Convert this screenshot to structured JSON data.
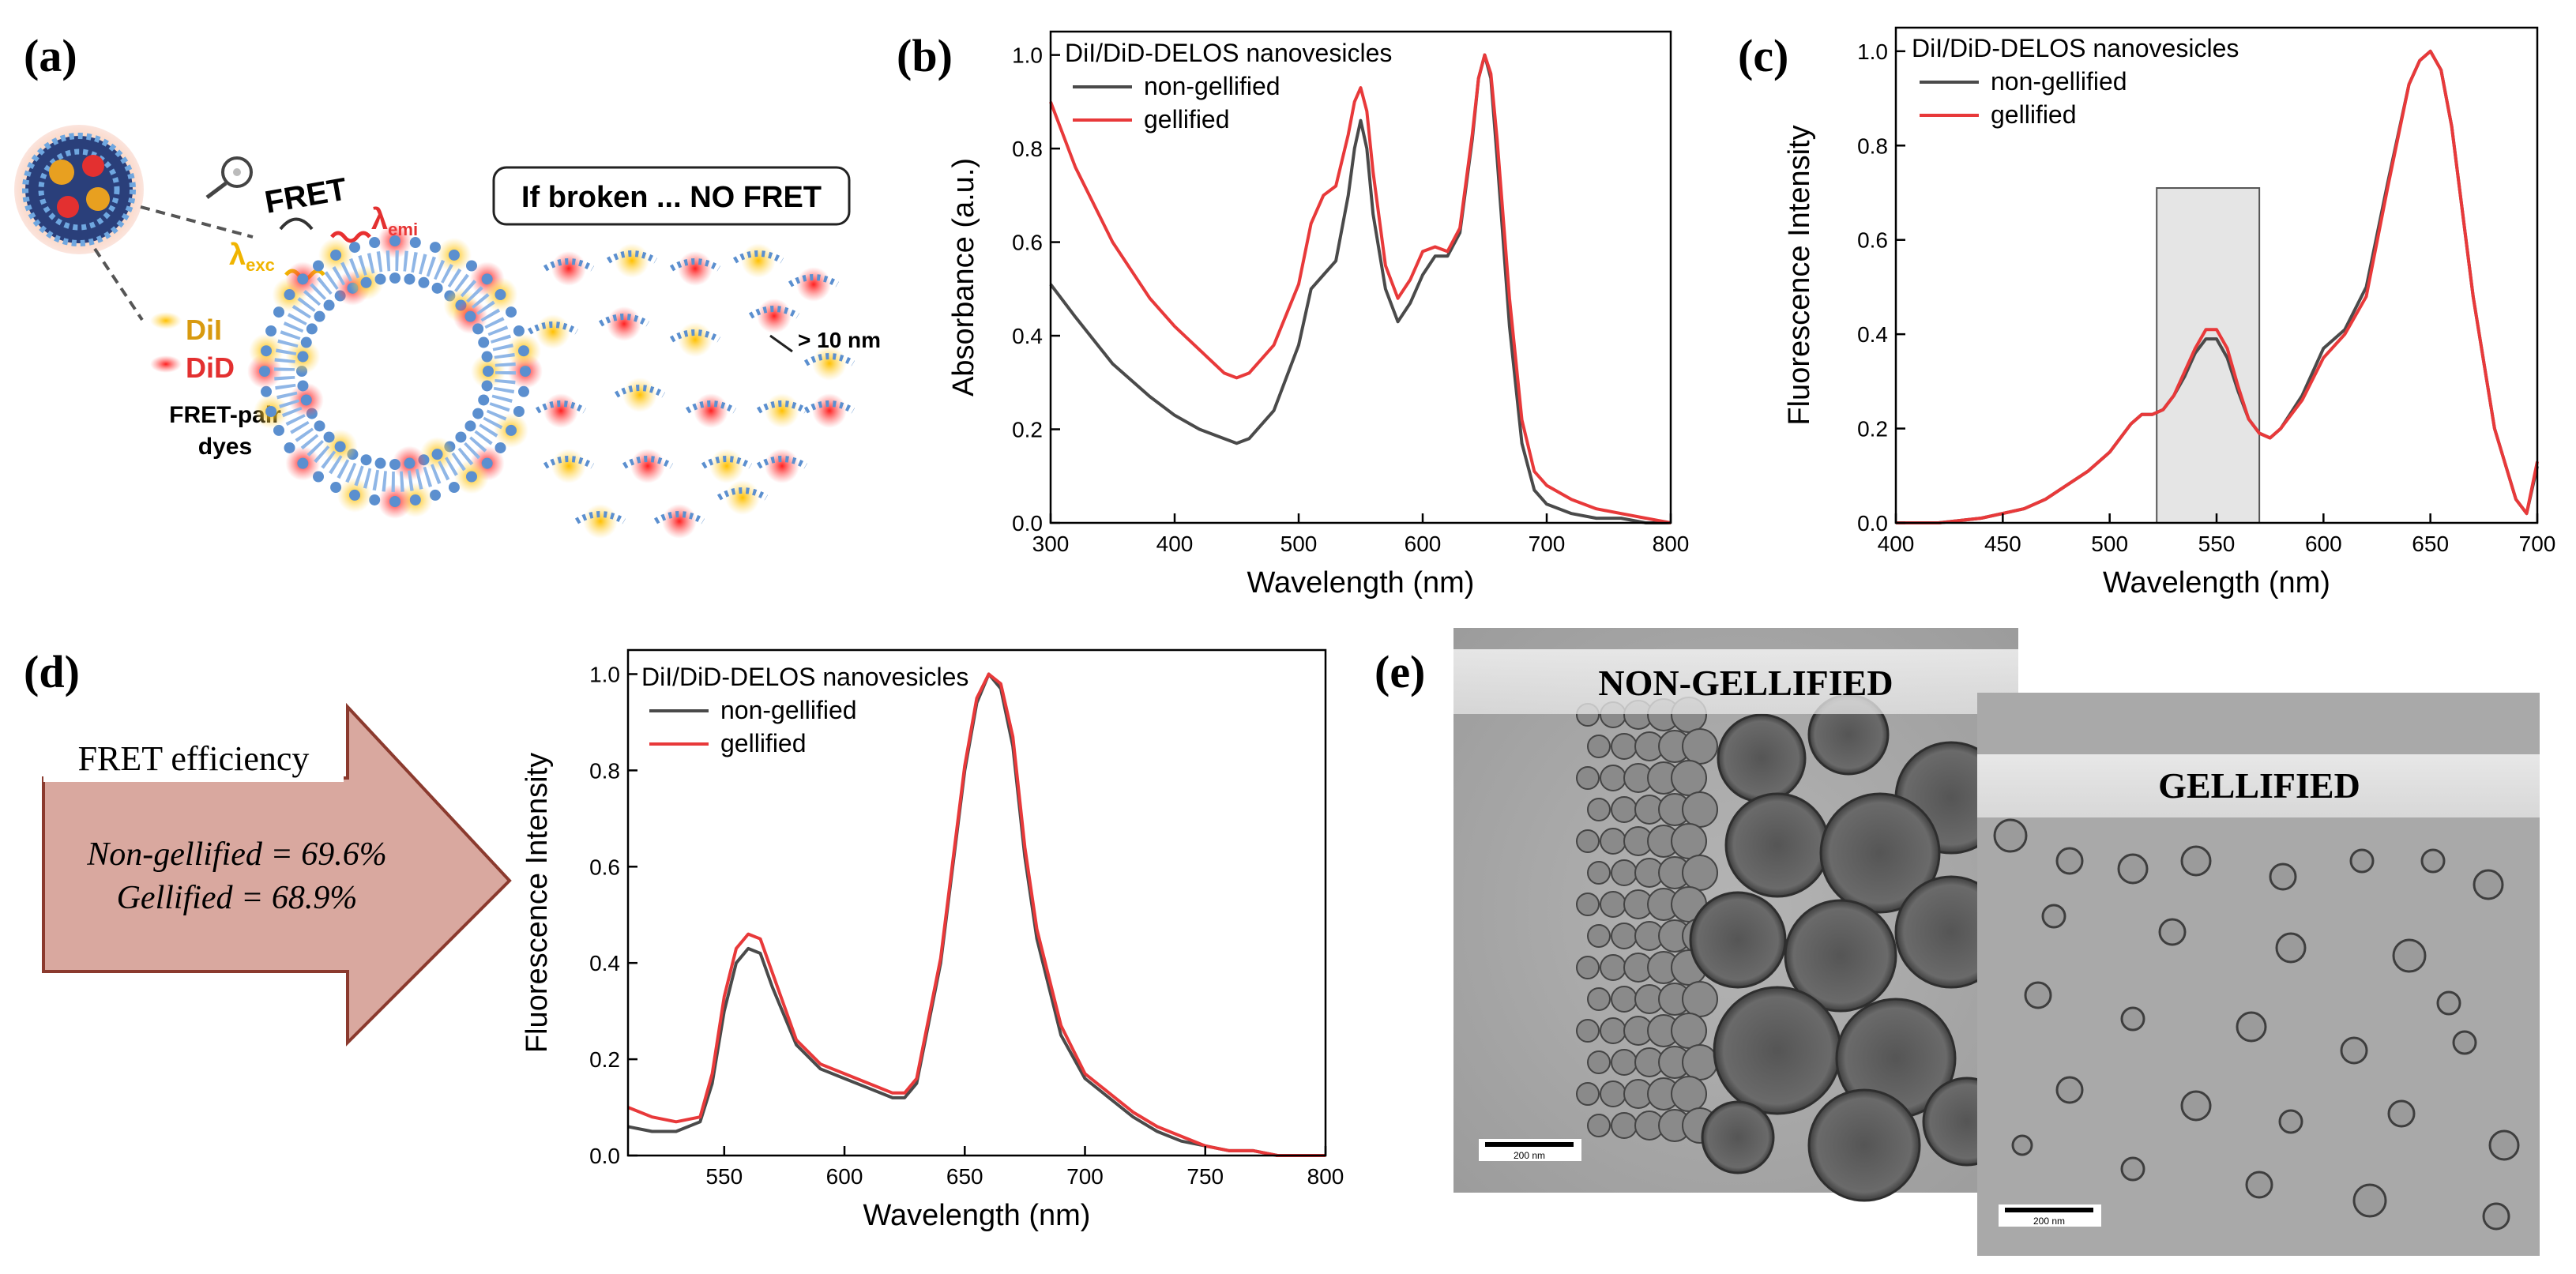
{
  "panels": {
    "a": "(a)",
    "b": "(b)",
    "c": "(c)",
    "d": "(d)",
    "e": "(e)"
  },
  "schematic": {
    "fret": "FRET",
    "lambda_exc": "λ",
    "exc_sub": "exc",
    "lambda_emi": "λ",
    "emi_sub": "emi",
    "dil": "DiI",
    "did": "DiD",
    "fret_pair_line1": "FRET-pair",
    "fret_pair_line2": "dyes",
    "broken": "If broken ... NO FRET",
    "distance": "> 10 nm"
  },
  "fret_efficiency": {
    "title": "FRET efficiency",
    "line1": "Non-gellified = 69.6%",
    "line2": "Gellified = 68.9%"
  },
  "tem": {
    "label_left": "NON-GELLIFIED",
    "label_right": "GELLIFIED",
    "scale_left": "200 nm",
    "scale_right": "200 nm"
  },
  "colors": {
    "non_gellified": "#4a4a4a",
    "gellified": "#e8393a",
    "arrow_fill": "#d9a89f",
    "arrow_stroke": "#8b3a2e"
  },
  "chart_data": [
    {
      "id": "b",
      "type": "line",
      "legend_title": "DiI/DiD-DELOS nanovesicles",
      "xlabel": "Wavelength (nm)",
      "ylabel": "Absorbance (a.u.)",
      "xlim": [
        300,
        800
      ],
      "ylim": [
        0,
        1.05
      ],
      "xticks": [
        "300",
        "400",
        "500",
        "600",
        "700",
        "800"
      ],
      "yticks": [
        "0.0",
        "0.2",
        "0.4",
        "0.6",
        "0.8",
        "1.0"
      ],
      "series": [
        {
          "name": "non-gellified",
          "x": [
            300,
            320,
            350,
            380,
            400,
            420,
            440,
            450,
            460,
            480,
            500,
            510,
            520,
            530,
            540,
            545,
            550,
            555,
            560,
            570,
            580,
            590,
            600,
            610,
            620,
            630,
            640,
            645,
            650,
            655,
            660,
            670,
            680,
            690,
            700,
            720,
            740,
            760,
            780,
            800
          ],
          "y": [
            0.51,
            0.44,
            0.34,
            0.27,
            0.23,
            0.2,
            0.18,
            0.17,
            0.18,
            0.24,
            0.38,
            0.5,
            0.53,
            0.56,
            0.7,
            0.8,
            0.86,
            0.8,
            0.66,
            0.5,
            0.43,
            0.47,
            0.53,
            0.57,
            0.57,
            0.62,
            0.82,
            0.95,
            1.0,
            0.95,
            0.78,
            0.42,
            0.17,
            0.07,
            0.04,
            0.02,
            0.01,
            0.01,
            0.0,
            0.0
          ]
        },
        {
          "name": "gellified",
          "x": [
            300,
            320,
            350,
            380,
            400,
            420,
            440,
            450,
            460,
            480,
            500,
            510,
            520,
            530,
            540,
            545,
            550,
            555,
            560,
            570,
            580,
            590,
            600,
            610,
            620,
            630,
            640,
            645,
            650,
            655,
            660,
            670,
            680,
            690,
            700,
            720,
            740,
            760,
            780,
            800
          ],
          "y": [
            0.9,
            0.76,
            0.6,
            0.48,
            0.42,
            0.37,
            0.32,
            0.31,
            0.32,
            0.38,
            0.51,
            0.64,
            0.7,
            0.72,
            0.83,
            0.9,
            0.93,
            0.88,
            0.75,
            0.55,
            0.48,
            0.52,
            0.58,
            0.59,
            0.58,
            0.63,
            0.83,
            0.95,
            1.0,
            0.96,
            0.82,
            0.48,
            0.22,
            0.11,
            0.08,
            0.05,
            0.03,
            0.02,
            0.01,
            0.0
          ]
        }
      ]
    },
    {
      "id": "c",
      "type": "line",
      "legend_title": "DiI/DiD-DELOS nanovesicles",
      "xlabel": "Wavelength (nm)",
      "ylabel": "Fluorescence Intensity",
      "xlim": [
        400,
        700
      ],
      "ylim": [
        0,
        1.05
      ],
      "xticks": [
        "400",
        "450",
        "500",
        "550",
        "600",
        "650",
        "700"
      ],
      "yticks": [
        "0.0",
        "0.2",
        "0.4",
        "0.6",
        "0.8",
        "1.0"
      ],
      "highlight": {
        "x": [
          522,
          570
        ],
        "y": [
          0,
          0.71
        ]
      },
      "series": [
        {
          "name": "non-gellified",
          "x": [
            400,
            420,
            440,
            460,
            470,
            480,
            490,
            500,
            510,
            515,
            520,
            525,
            530,
            535,
            540,
            545,
            550,
            555,
            560,
            565,
            570,
            575,
            580,
            590,
            600,
            610,
            620,
            630,
            640,
            645,
            650,
            655,
            660,
            670,
            680,
            690,
            695,
            700
          ],
          "y": [
            0.0,
            0.0,
            0.01,
            0.03,
            0.05,
            0.08,
            0.11,
            0.15,
            0.21,
            0.23,
            0.23,
            0.24,
            0.27,
            0.31,
            0.36,
            0.39,
            0.39,
            0.35,
            0.28,
            0.22,
            0.19,
            0.18,
            0.2,
            0.27,
            0.37,
            0.41,
            0.5,
            0.72,
            0.93,
            0.98,
            1.0,
            0.96,
            0.84,
            0.48,
            0.2,
            0.05,
            0.02,
            0.12
          ]
        },
        {
          "name": "gellified",
          "x": [
            400,
            420,
            440,
            460,
            470,
            480,
            490,
            500,
            510,
            515,
            520,
            525,
            530,
            535,
            540,
            545,
            550,
            555,
            560,
            565,
            570,
            575,
            580,
            590,
            600,
            610,
            620,
            630,
            640,
            645,
            650,
            655,
            660,
            670,
            680,
            690,
            695,
            700
          ],
          "y": [
            0.0,
            0.0,
            0.01,
            0.03,
            0.05,
            0.08,
            0.11,
            0.15,
            0.21,
            0.23,
            0.23,
            0.24,
            0.27,
            0.32,
            0.37,
            0.41,
            0.41,
            0.37,
            0.29,
            0.22,
            0.19,
            0.18,
            0.2,
            0.26,
            0.35,
            0.4,
            0.48,
            0.71,
            0.93,
            0.98,
            1.0,
            0.96,
            0.84,
            0.48,
            0.2,
            0.05,
            0.02,
            0.13
          ]
        }
      ]
    },
    {
      "id": "d",
      "type": "line",
      "legend_title": "DiI/DiD-DELOS nanovesicles",
      "xlabel": "Wavelength (nm)",
      "ylabel": "Fluorescence Intensity",
      "xlim": [
        510,
        800
      ],
      "ylim": [
        0,
        1.05
      ],
      "xticks": [
        "550",
        "600",
        "650",
        "700",
        "750",
        "800"
      ],
      "yticks": [
        "0.0",
        "0.2",
        "0.4",
        "0.6",
        "0.8",
        "1.0"
      ],
      "series": [
        {
          "name": "non-gellified",
          "x": [
            510,
            520,
            530,
            540,
            545,
            550,
            555,
            560,
            565,
            570,
            580,
            590,
            600,
            610,
            620,
            625,
            630,
            640,
            650,
            655,
            660,
            665,
            670,
            675,
            680,
            690,
            700,
            710,
            720,
            730,
            740,
            750,
            760,
            770,
            780,
            790,
            800
          ],
          "y": [
            0.06,
            0.05,
            0.05,
            0.07,
            0.15,
            0.3,
            0.4,
            0.43,
            0.42,
            0.35,
            0.23,
            0.18,
            0.16,
            0.14,
            0.12,
            0.12,
            0.15,
            0.4,
            0.8,
            0.94,
            1.0,
            0.97,
            0.85,
            0.62,
            0.45,
            0.25,
            0.16,
            0.12,
            0.08,
            0.05,
            0.03,
            0.02,
            0.01,
            0.01,
            0.0,
            0.0,
            0.0
          ]
        },
        {
          "name": "gellified",
          "x": [
            510,
            520,
            530,
            540,
            545,
            550,
            555,
            560,
            565,
            570,
            580,
            590,
            600,
            610,
            620,
            625,
            630,
            640,
            650,
            655,
            660,
            665,
            670,
            675,
            680,
            690,
            700,
            710,
            720,
            730,
            740,
            750,
            760,
            770,
            780,
            790,
            800
          ],
          "y": [
            0.1,
            0.08,
            0.07,
            0.08,
            0.17,
            0.33,
            0.43,
            0.46,
            0.45,
            0.38,
            0.24,
            0.19,
            0.17,
            0.15,
            0.13,
            0.13,
            0.16,
            0.41,
            0.81,
            0.95,
            1.0,
            0.98,
            0.87,
            0.64,
            0.47,
            0.27,
            0.17,
            0.13,
            0.09,
            0.06,
            0.04,
            0.02,
            0.01,
            0.01,
            0.0,
            0.0,
            0.0
          ]
        }
      ]
    }
  ]
}
